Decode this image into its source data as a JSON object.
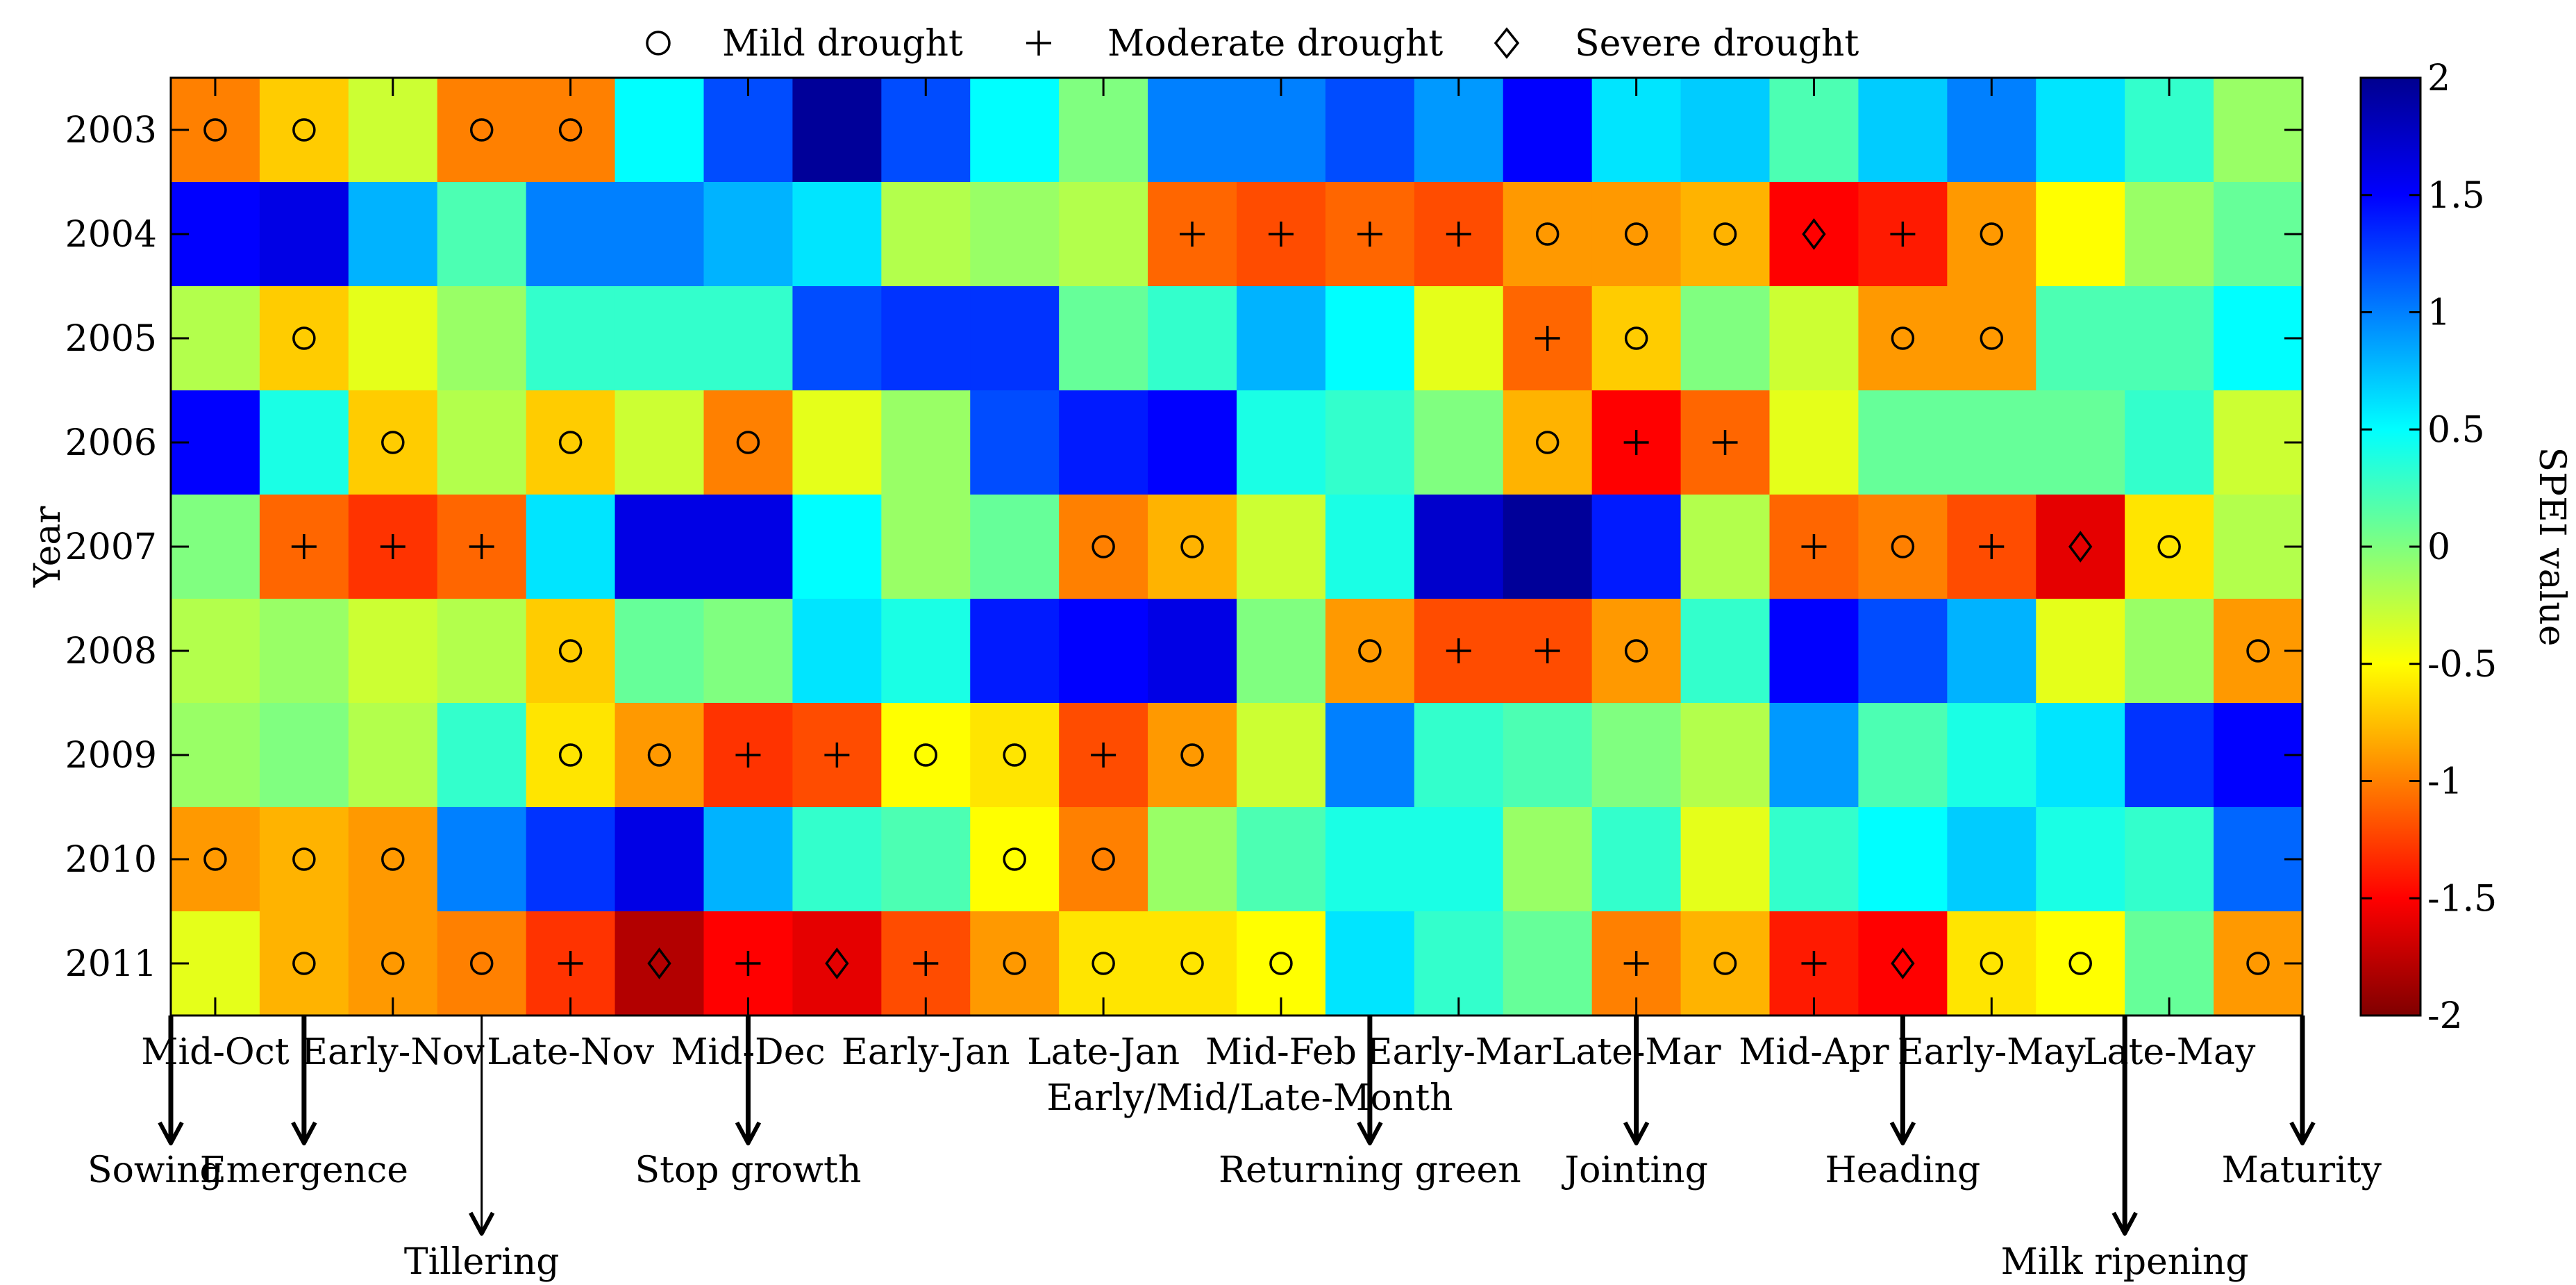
{
  "chart_data": {
    "type": "heatmap",
    "legend": {
      "placement": "top",
      "items": [
        {
          "marker": "circle",
          "label": "Mild drought"
        },
        {
          "marker": "plus",
          "label": "Moderate drought"
        },
        {
          "marker": "diamond",
          "label": "Severe drought"
        }
      ]
    },
    "ylabel": "Year",
    "xlabel": "Early/Mid/Late-Month",
    "colorbar": {
      "label": "SPEI value",
      "range": [
        -2,
        2
      ],
      "ticks": [
        "2",
        "1.5",
        "1",
        "0.5",
        "0",
        "-0.5",
        "-1",
        "-1.5",
        "-2"
      ],
      "colormap": "jet"
    },
    "years": [
      "2003",
      "2004",
      "2005",
      "2006",
      "2007",
      "2008",
      "2009",
      "2010",
      "2011"
    ],
    "x_tick_labels": [
      "Mid-Oct",
      "Early-Nov",
      "Late-Nov",
      "Mid-Dec",
      "Early-Jan",
      "Late-Jan",
      "Mid-Feb",
      "Early-Mar",
      "Late-Mar",
      "Mid-Apr",
      "Early-May",
      "Late-May"
    ],
    "x_tick_columns": [
      0,
      2,
      4,
      6,
      8,
      10,
      12,
      14,
      16,
      18,
      20,
      22
    ],
    "n_columns": 24,
    "values": [
      [
        -1.0,
        -0.7,
        -0.3,
        -1.0,
        -1.0,
        0.5,
        1.2,
        1.9,
        1.2,
        0.5,
        0.0,
        1.0,
        1.0,
        1.2,
        0.9,
        1.5,
        0.6,
        0.7,
        0.2,
        0.7,
        1.0,
        0.6,
        0.3,
        -0.1
      ],
      [
        1.5,
        1.6,
        0.8,
        0.2,
        1.0,
        1.0,
        0.8,
        0.6,
        -0.2,
        -0.1,
        -0.2,
        -1.1,
        -1.2,
        -1.1,
        -1.2,
        -0.9,
        -0.9,
        -0.8,
        -1.5,
        -1.4,
        -0.9,
        -0.5,
        -0.1,
        0.1
      ],
      [
        -0.2,
        -0.7,
        -0.4,
        -0.1,
        0.3,
        0.3,
        0.3,
        1.2,
        1.3,
        1.3,
        0.1,
        0.3,
        0.8,
        0.5,
        -0.4,
        -1.1,
        -0.7,
        0.0,
        -0.3,
        -0.9,
        -0.9,
        0.2,
        0.2,
        0.5
      ],
      [
        1.5,
        0.4,
        -0.7,
        -0.2,
        -0.7,
        -0.3,
        -1.0,
        -0.4,
        -0.1,
        1.2,
        1.4,
        1.5,
        0.4,
        0.3,
        0.0,
        -0.8,
        -1.5,
        -1.1,
        -0.4,
        0.1,
        0.1,
        0.1,
        0.3,
        -0.3
      ],
      [
        0.0,
        -1.1,
        -1.3,
        -1.1,
        0.6,
        1.6,
        1.6,
        0.5,
        -0.1,
        0.1,
        -1.0,
        -0.8,
        -0.3,
        0.4,
        1.7,
        1.9,
        1.4,
        -0.2,
        -1.1,
        -1.0,
        -1.2,
        -1.6,
        -0.6,
        -0.2
      ],
      [
        -0.2,
        -0.1,
        -0.3,
        -0.2,
        -0.7,
        0.1,
        0.0,
        0.6,
        0.4,
        1.4,
        1.5,
        1.6,
        0.0,
        -0.9,
        -1.2,
        -1.2,
        -0.9,
        0.3,
        1.5,
        1.2,
        0.8,
        -0.4,
        -0.1,
        -0.9
      ],
      [
        -0.1,
        0.0,
        -0.2,
        0.3,
        -0.6,
        -0.9,
        -1.3,
        -1.2,
        -0.5,
        -0.6,
        -1.2,
        -0.9,
        -0.3,
        1.0,
        0.3,
        0.2,
        0.0,
        -0.2,
        0.9,
        0.2,
        0.4,
        0.6,
        1.3,
        1.5
      ],
      [
        -0.9,
        -0.8,
        -0.9,
        1.0,
        1.3,
        1.6,
        0.8,
        0.3,
        0.2,
        -0.5,
        -1.0,
        -0.1,
        0.2,
        0.4,
        0.4,
        -0.1,
        0.3,
        -0.4,
        0.3,
        0.5,
        0.7,
        0.4,
        0.3,
        1.1
      ],
      [
        -0.4,
        -0.8,
        -0.9,
        -1.0,
        -1.3,
        -1.8,
        -1.5,
        -1.6,
        -1.2,
        -0.9,
        -0.6,
        -0.6,
        -0.5,
        0.6,
        0.3,
        0.1,
        -1.0,
        -0.8,
        -1.4,
        -1.5,
        -0.6,
        -0.5,
        0.1,
        -0.9
      ]
    ],
    "drought_markers": [
      [
        "o",
        "o",
        "",
        "o",
        "o",
        "",
        "",
        "",
        "",
        "",
        "",
        "",
        "",
        "",
        "",
        "",
        "",
        "",
        "",
        "",
        "",
        "",
        "",
        ""
      ],
      [
        "",
        "",
        "",
        "",
        "",
        "",
        "",
        "",
        "",
        "",
        "",
        "+",
        "+",
        "+",
        "+",
        "o",
        "o",
        "o",
        "d",
        "+",
        "o",
        "",
        "",
        ""
      ],
      [
        "",
        "o",
        "",
        "",
        "",
        "",
        "",
        "",
        "",
        "",
        "",
        "",
        "",
        "",
        "",
        "+",
        "o",
        "",
        "",
        "o",
        "o",
        "",
        "",
        ""
      ],
      [
        "",
        "",
        "o",
        "",
        "o",
        "",
        "o",
        "",
        "",
        "",
        "",
        "",
        "",
        "",
        "",
        "o",
        "+",
        "+",
        "",
        "",
        "",
        "",
        "",
        ""
      ],
      [
        "",
        "+",
        "+",
        "+",
        "",
        "",
        "",
        "",
        "",
        "",
        "o",
        "o",
        "",
        "",
        "",
        "",
        "",
        "",
        "+",
        "o",
        "+",
        "d",
        "o",
        ""
      ],
      [
        "",
        "",
        "",
        "",
        "o",
        "",
        "",
        "",
        "",
        "",
        "",
        "",
        "",
        "o",
        "+",
        "+",
        "o",
        "",
        "",
        "",
        "",
        "",
        "",
        "o"
      ],
      [
        "",
        "",
        "",
        "",
        "o",
        "o",
        "+",
        "+",
        "o",
        "o",
        "+",
        "o",
        "",
        "",
        "",
        "",
        "",
        "",
        "",
        "",
        "",
        "",
        "",
        ""
      ],
      [
        "o",
        "o",
        "o",
        "",
        "",
        "",
        "",
        "",
        "",
        "o",
        "o",
        "",
        "",
        "",
        "",
        "",
        "",
        "",
        "",
        "",
        "",
        "",
        "",
        ""
      ],
      [
        "",
        "o",
        "o",
        "o",
        "+",
        "d",
        "+",
        "d",
        "+",
        "o",
        "o",
        "o",
        "o",
        "",
        "",
        "",
        "+",
        "o",
        "+",
        "d",
        "o",
        "o",
        "",
        "o"
      ]
    ],
    "growth_stages": [
      {
        "label": "Sowing",
        "column": 0
      },
      {
        "label": "Emergence",
        "column": 1.5
      },
      {
        "label": "Tillering",
        "column": 3.5
      },
      {
        "label": "Stop growth",
        "column": 6.5
      },
      {
        "label": "Returning green",
        "column": 13.5
      },
      {
        "label": "Jointing",
        "column": 16.5
      },
      {
        "label": "Heading",
        "column": 19.5
      },
      {
        "label": "Milk ripening",
        "column": 22
      },
      {
        "label": "Maturity",
        "column": 24
      }
    ],
    "grid": false
  }
}
